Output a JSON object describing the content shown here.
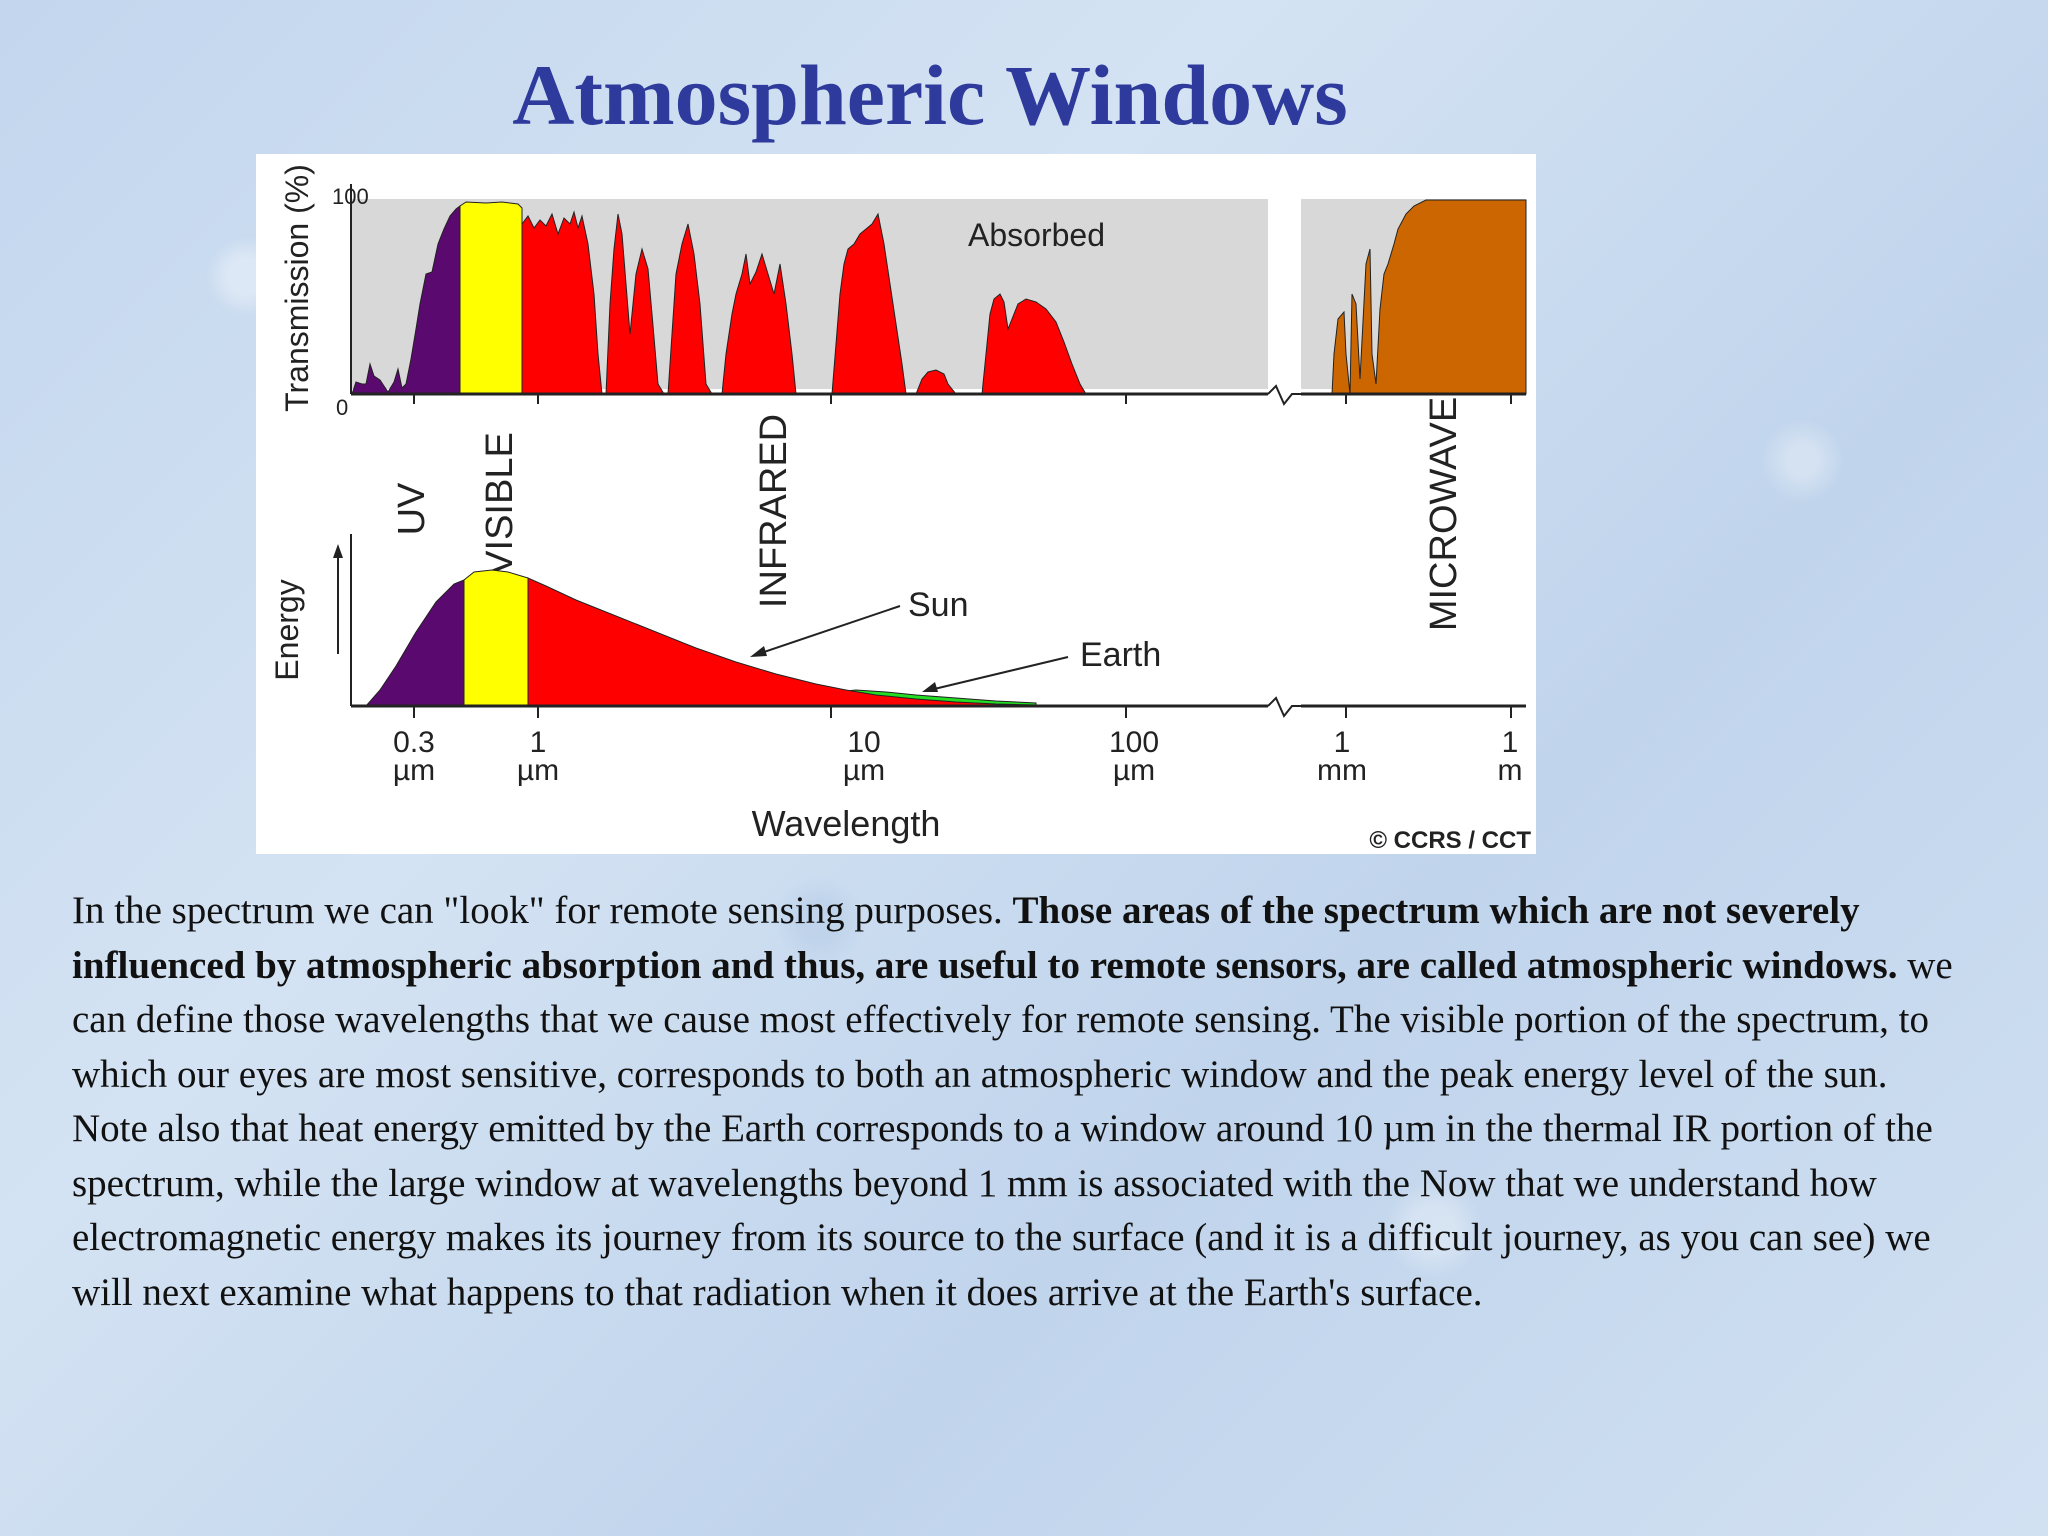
{
  "slide": {
    "title": "Atmospheric Windows"
  },
  "figure": {
    "top_panel": {
      "y_axis_label": "Transmission (%)",
      "y_tick_max": "100",
      "y_tick_min": "0",
      "absorbed_label": "Absorbed"
    },
    "region_labels": {
      "uv": "UV",
      "visible": "VISIBLE",
      "infrared": "INFRARED",
      "microwave": "MICROWAVE"
    },
    "bottom_panel": {
      "y_axis_label": "Energy",
      "sun_label": "Sun",
      "earth_label": "Earth"
    },
    "x_ticks": [
      {
        "value": "0.3",
        "unit": "µm"
      },
      {
        "value": "1",
        "unit": "µm"
      },
      {
        "value": "10",
        "unit": "µm"
      },
      {
        "value": "100",
        "unit": "µm"
      },
      {
        "value": "1",
        "unit": "mm"
      },
      {
        "value": "1",
        "unit": "m"
      }
    ],
    "x_axis_label": "Wavelength",
    "credit": "© CCRS / CCT",
    "colors": {
      "uv": "#5a0a6e",
      "visible": "#ffff00",
      "infrared": "#ff0000",
      "microwave": "#cc6600",
      "earth": "#22dd22",
      "absorbed": "#d8d8d8"
    }
  },
  "paragraph": {
    "intro": " In the spectrum we can \"look\" for remote sensing purposes. ",
    "bold_definition": "Those areas of the spectrum which are not severely influenced by atmospheric absorption and thus, are useful to remote sensors, are called atmospheric windows.",
    "rest": " we can define those wavelengths that we cause most effectively for remote sensing. The visible portion of the spectrum, to which our eyes are most sensitive, corresponds to both an atmospheric window and the peak energy level of the sun. Note also that heat energy emitted by the Earth corresponds to a window around 10 µm in the thermal IR portion of the spectrum, while the large window at wavelengths beyond 1 mm is associated with the Now that we understand how electromagnetic energy makes its journey from its source to the surface (and it is a difficult journey, as you can see) we will next examine what happens to that radiation when it does arrive at the Earth's surface."
  }
}
